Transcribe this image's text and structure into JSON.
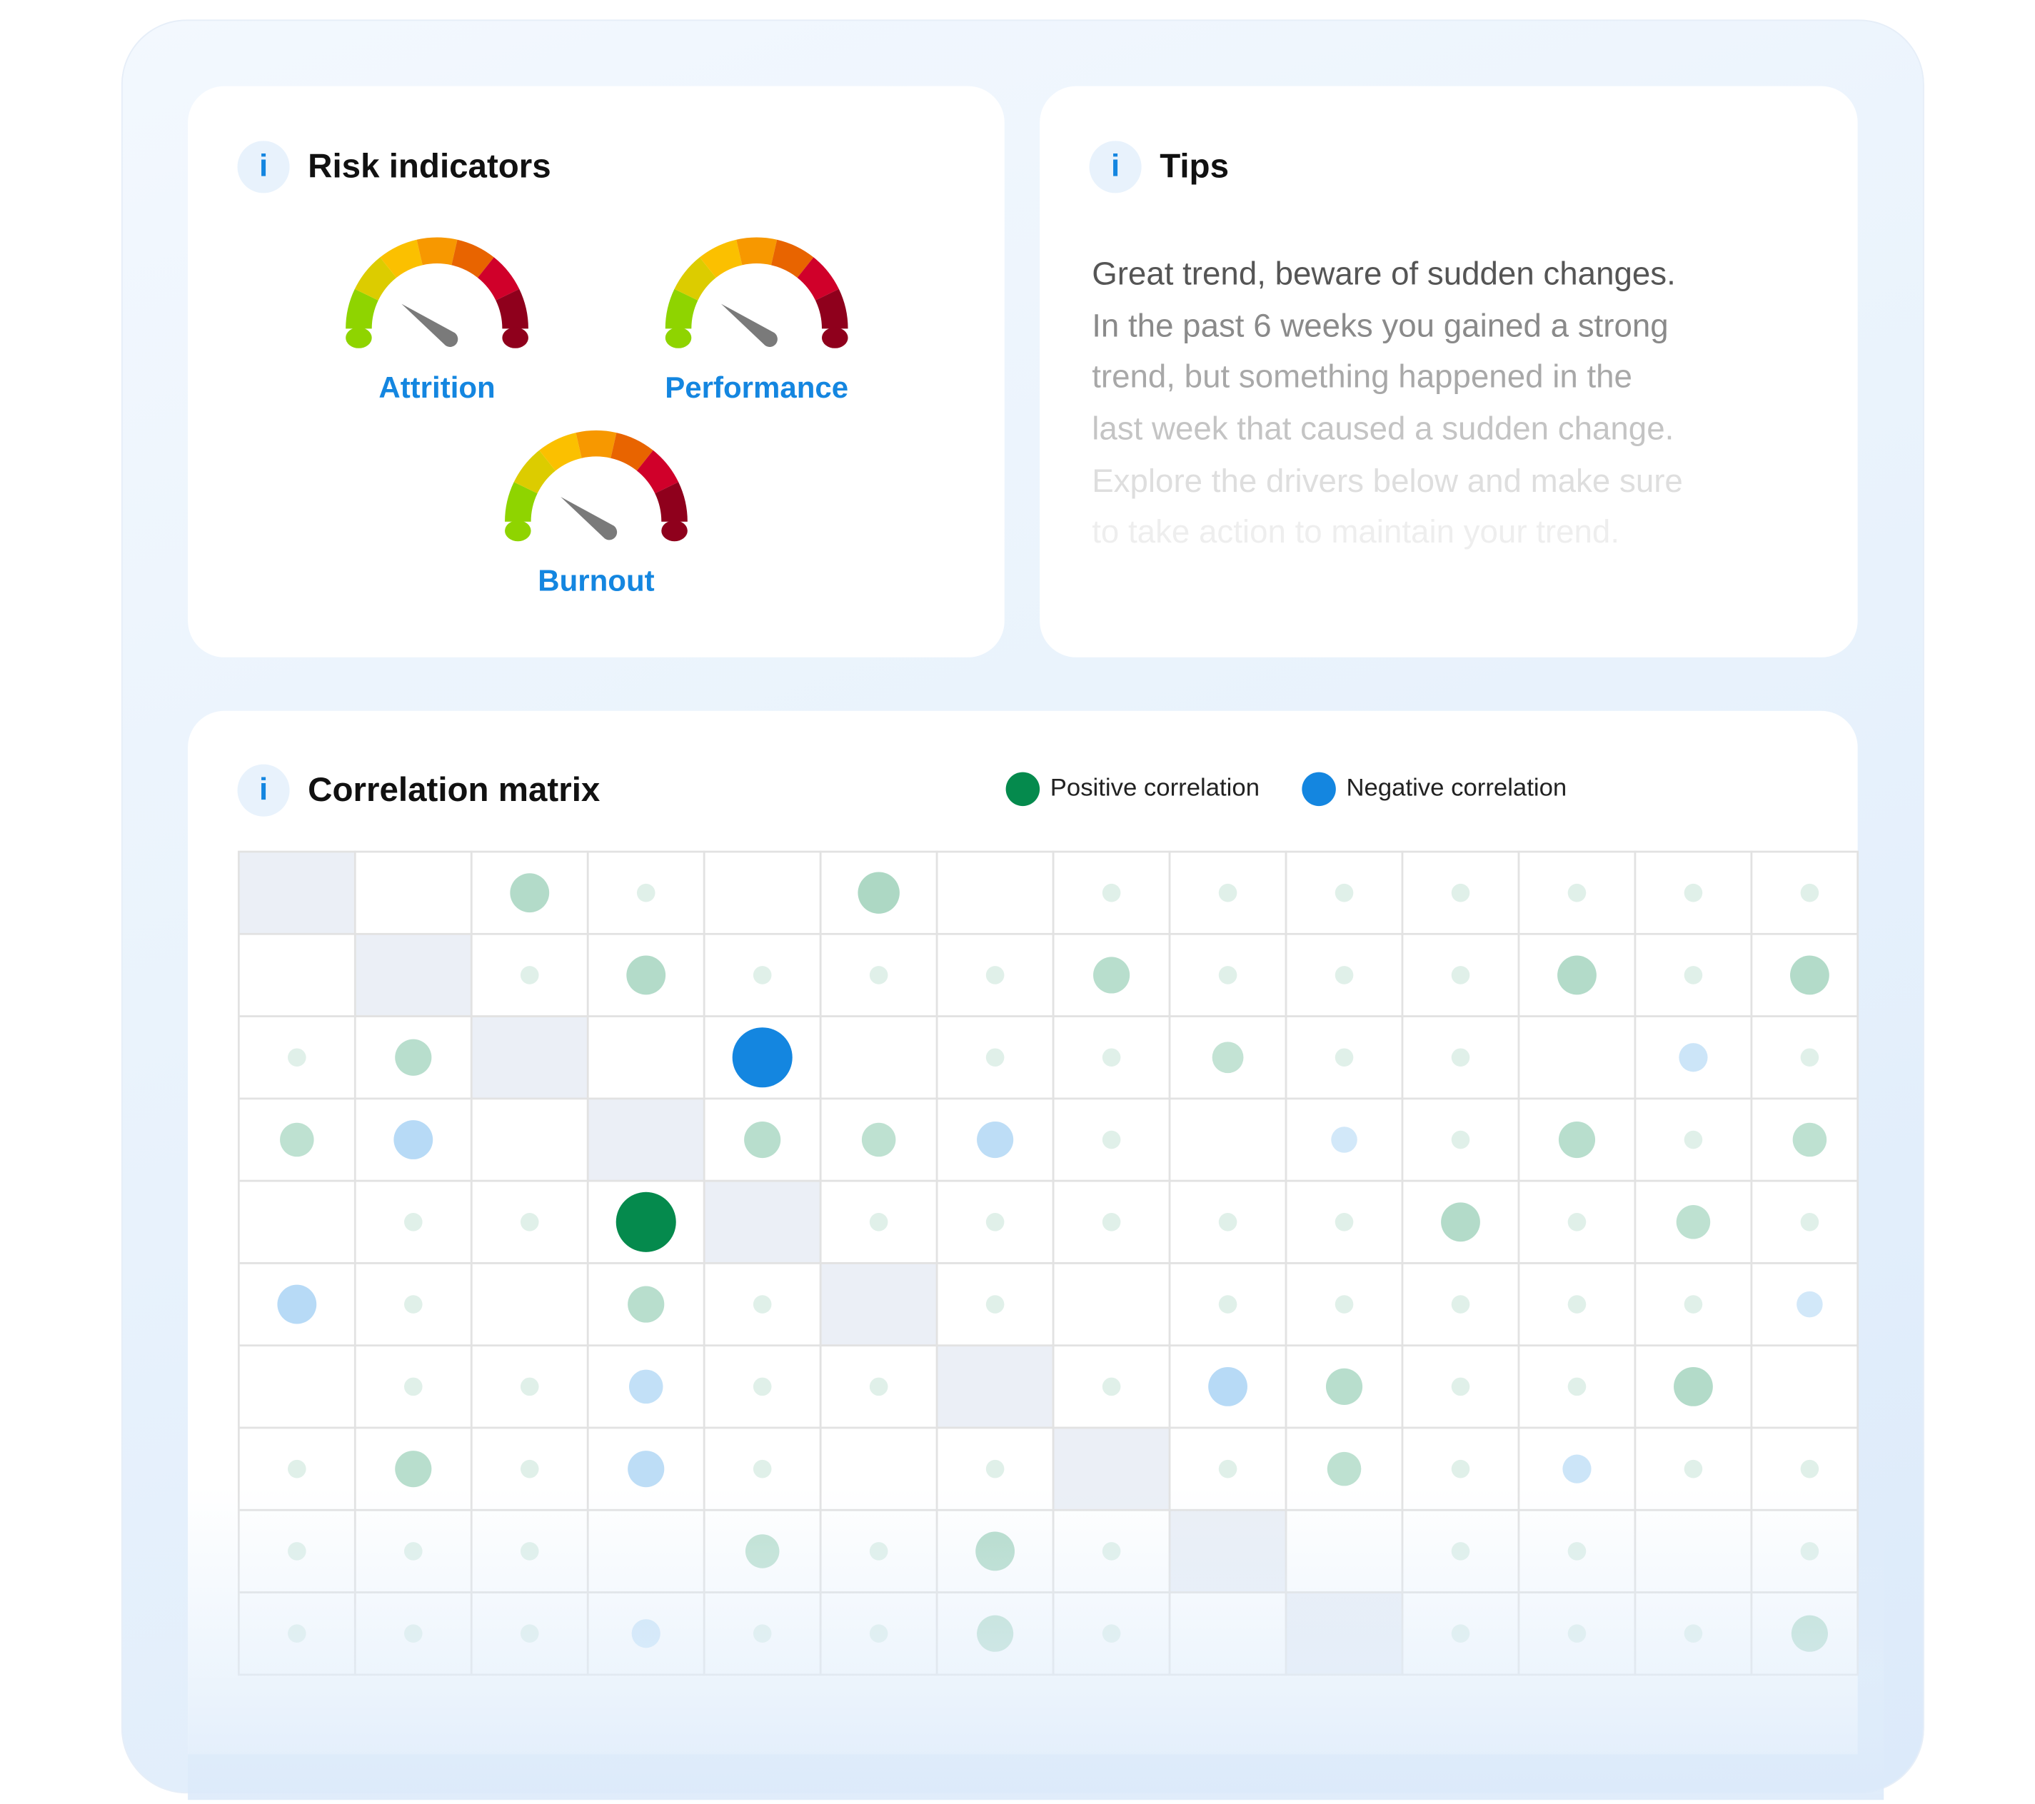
{
  "risk": {
    "title": "Risk indicators",
    "info_icon": "i",
    "gauges": [
      {
        "label": "Attrition",
        "value": 0.2
      },
      {
        "label": "Performance",
        "value": 0.2
      },
      {
        "label": "Burnout",
        "value": 0.2
      }
    ],
    "segment_colors": [
      "#8fd400",
      "#dccc00",
      "#fbc000",
      "#f79800",
      "#e86400",
      "#d0002a",
      "#8f001c"
    ],
    "needle_color": "#7a7a7a"
  },
  "tips": {
    "title": "Tips",
    "info_icon": "i",
    "lines": [
      "Great trend, beware of sudden changes.",
      "In the past 6 weeks you gained a strong",
      "trend, but something happened in the",
      "last week that caused a sudden change.",
      "Explore the drivers below and make sure",
      "to take action to maintain your trend."
    ]
  },
  "correlation": {
    "title": "Correlation matrix",
    "info_icon": "i",
    "legend": [
      {
        "label": "Positive correlation",
        "color": "#058a4d"
      },
      {
        "label": "Negative correlation",
        "color": "#1486e0"
      }
    ],
    "diagonal_color": "#ebeff6",
    "matrix": [
      [
        null,
        0,
        0.5,
        0.1,
        0,
        0.55,
        0,
        0.1,
        0.1,
        0.1,
        0.1,
        0.1,
        0.1,
        0.1
      ],
      [
        0,
        null,
        0.1,
        0.5,
        0.1,
        0.1,
        0.1,
        0.45,
        0.1,
        0.1,
        0.1,
        0.5,
        0.1,
        0.5
      ],
      [
        0.1,
        0.45,
        null,
        0,
        -0.9,
        0,
        0.1,
        0.1,
        0.35,
        0.1,
        0.1,
        0,
        -0.3,
        0.1
      ],
      [
        0.4,
        -0.5,
        0,
        null,
        0.45,
        0.4,
        -0.45,
        0.1,
        0,
        -0.25,
        0.1,
        0.45,
        0.1,
        0.4
      ],
      [
        0,
        0.1,
        0.1,
        0.9,
        null,
        0.1,
        0.1,
        0.1,
        0.1,
        0.1,
        0.5,
        0.1,
        0.4,
        0.1
      ],
      [
        -0.5,
        0.1,
        0,
        0.45,
        0.1,
        null,
        0.1,
        0,
        0.1,
        0.1,
        0.1,
        0.1,
        0.1,
        -0.25
      ],
      [
        0,
        0.1,
        0.1,
        -0.4,
        0.1,
        0.1,
        null,
        0.1,
        -0.5,
        0.45,
        0.1,
        0.1,
        0.5,
        0
      ],
      [
        0.1,
        0.45,
        0.1,
        -0.45,
        0.1,
        0,
        0.1,
        null,
        0.1,
        0.4,
        0.1,
        -0.3,
        0.1,
        0.1
      ],
      [
        0.1,
        0.1,
        0.1,
        0,
        0.4,
        0.1,
        0.5,
        0.1,
        null,
        0,
        0.1,
        0.1,
        0,
        0.1
      ],
      [
        0.1,
        0.1,
        0.1,
        -0.3,
        0.1,
        0.1,
        0.45,
        0.1,
        0,
        null,
        0.1,
        0.1,
        0.1,
        0.45
      ]
    ]
  }
}
